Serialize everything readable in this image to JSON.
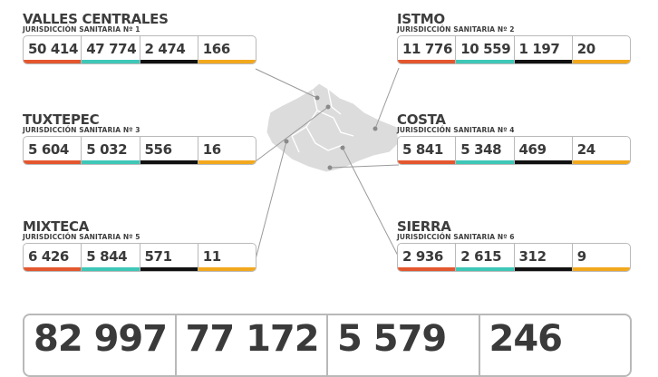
{
  "colors": {
    "confirmados": "#e4572e",
    "recuperados": "#3ec7b7",
    "defunciones": "#111111",
    "activos": "#f2a81d",
    "map_fill": "#dcdcdc",
    "outline": "#b9b9b9"
  },
  "regions": [
    {
      "name": "VALLES CENTRALES",
      "jurisdiction": "JURISDICCIÓN SANITARIA Nº 1",
      "values": [
        "50 414",
        "47 774",
        "2 474",
        "166"
      ]
    },
    {
      "name": "ISTMO",
      "jurisdiction": "JURISDICCIÓN SANITARIA Nº 2",
      "values": [
        "11 776",
        "10 559",
        "1 197",
        "20"
      ]
    },
    {
      "name": "TUXTEPEC",
      "jurisdiction": "JURISDICCIÓN SANITARIA Nº 3",
      "values": [
        "5 604",
        "5 032",
        "556",
        "16"
      ]
    },
    {
      "name": "COSTA",
      "jurisdiction": "JURISDICCIÓN SANITARIA Nº 4",
      "values": [
        "5 841",
        "5 348",
        "469",
        "24"
      ]
    },
    {
      "name": "MIXTECA",
      "jurisdiction": "JURISDICCIÓN SANITARIA Nº 5",
      "values": [
        "6 426",
        "5 844",
        "571",
        "11"
      ]
    },
    {
      "name": "SIERRA",
      "jurisdiction": "JURISDICCIÓN SANITARIA Nº 6",
      "values": [
        "2 936",
        "2 615",
        "312",
        "9"
      ]
    }
  ],
  "totals": [
    "82 997",
    "77 172",
    "5 579",
    "246"
  ]
}
